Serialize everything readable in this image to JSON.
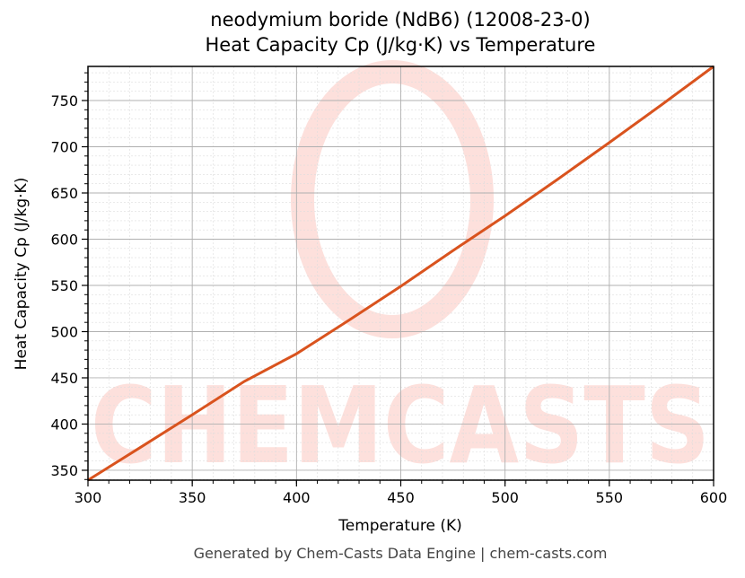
{
  "header": {
    "title_line1": "neodymium boride (NdB6) (12008-23-0)",
    "title_line2": "Heat Capacity Cp (J/kg·K) vs Temperature"
  },
  "footer": {
    "text": "Generated by Chem-Casts Data Engine | chem-casts.com"
  },
  "watermark": {
    "text": "CHEMCASTS",
    "color": "#fde0dc"
  },
  "colors": {
    "line": "#d9531e",
    "major_grid": "#b0b0b0",
    "minor_grid": "#dddddd",
    "axis": "#000000"
  },
  "chart_data": {
    "type": "line",
    "title": "neodymium boride (NdB6) (12008-23-0)\nHeat Capacity Cp (J/kg·K) vs Temperature",
    "xlabel": "Temperature (K)",
    "ylabel": "Heat Capacity Cp (J/kg·K)",
    "xlim": [
      300,
      600
    ],
    "ylim": [
      339.3,
      786.9
    ],
    "xticks": [
      300,
      350,
      400,
      450,
      500,
      550,
      600
    ],
    "yticks": [
      350,
      400,
      450,
      500,
      550,
      600,
      650,
      700,
      750
    ],
    "grid": true,
    "minor_grid": true,
    "legend": null,
    "series": [
      {
        "name": "Heat Capacity Cp",
        "color": "#d9531e",
        "x": [
          300,
          325,
          350,
          375,
          400,
          425,
          450,
          475,
          500,
          525,
          550,
          575,
          600
        ],
        "y": [
          339.3,
          374.5,
          410.1,
          446.2,
          476.0,
          512.1,
          549.0,
          587.7,
          625.2,
          664.5,
          704.5,
          745.2,
          786.9
        ]
      }
    ]
  }
}
